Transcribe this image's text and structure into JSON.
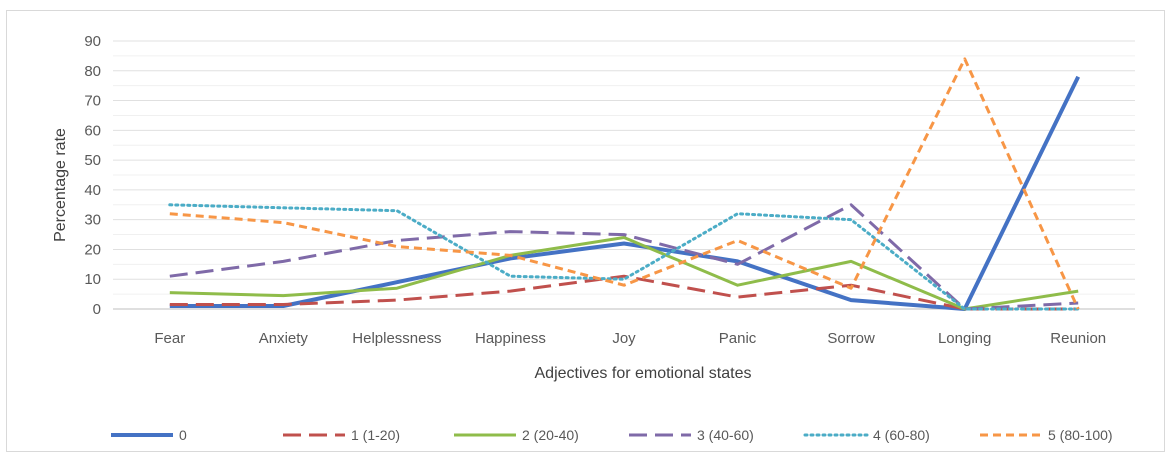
{
  "chart_data": {
    "type": "line",
    "title": "",
    "xlabel": "Adjectives for emotional states",
    "ylabel": "Percentage rate",
    "ylim": [
      0,
      90
    ],
    "yticks": [
      0,
      10,
      20,
      30,
      40,
      50,
      60,
      70,
      80,
      90
    ],
    "grid": true,
    "legend_position": "bottom",
    "categories": [
      "Fear",
      "Anxiety",
      "Helplessness",
      "Happiness",
      "Joy",
      "Panic",
      "Sorrow",
      "Longing",
      "Reunion"
    ],
    "series": [
      {
        "name": "0",
        "values": [
          1,
          1,
          9,
          17,
          22,
          16,
          3,
          0,
          78
        ],
        "color": "#4472c4",
        "style": "solid"
      },
      {
        "name": "1 (1-20)",
        "values": [
          1.5,
          1.5,
          3,
          6,
          11,
          4,
          8,
          0,
          0
        ],
        "color": "#c0504d",
        "style": "longdash"
      },
      {
        "name": "2 (20-40)",
        "values": [
          5.5,
          4.5,
          7,
          18,
          24,
          8,
          16,
          0,
          6
        ],
        "color": "#8fbc4a",
        "style": "solid"
      },
      {
        "name": "3 (40-60)",
        "values": [
          11,
          16,
          23,
          26,
          25,
          15,
          35,
          0,
          2
        ],
        "color": "#7f6aa8",
        "style": "longdash"
      },
      {
        "name": "4 (60-80)",
        "values": [
          35,
          34,
          33,
          11,
          10,
          32,
          30,
          0,
          0
        ],
        "color": "#4bacc6",
        "style": "dotted"
      },
      {
        "name": "5 (80-100)",
        "values": [
          32,
          29,
          21,
          18,
          8,
          23,
          7,
          84,
          0
        ],
        "color": "#f79646",
        "style": "dashed"
      }
    ]
  }
}
